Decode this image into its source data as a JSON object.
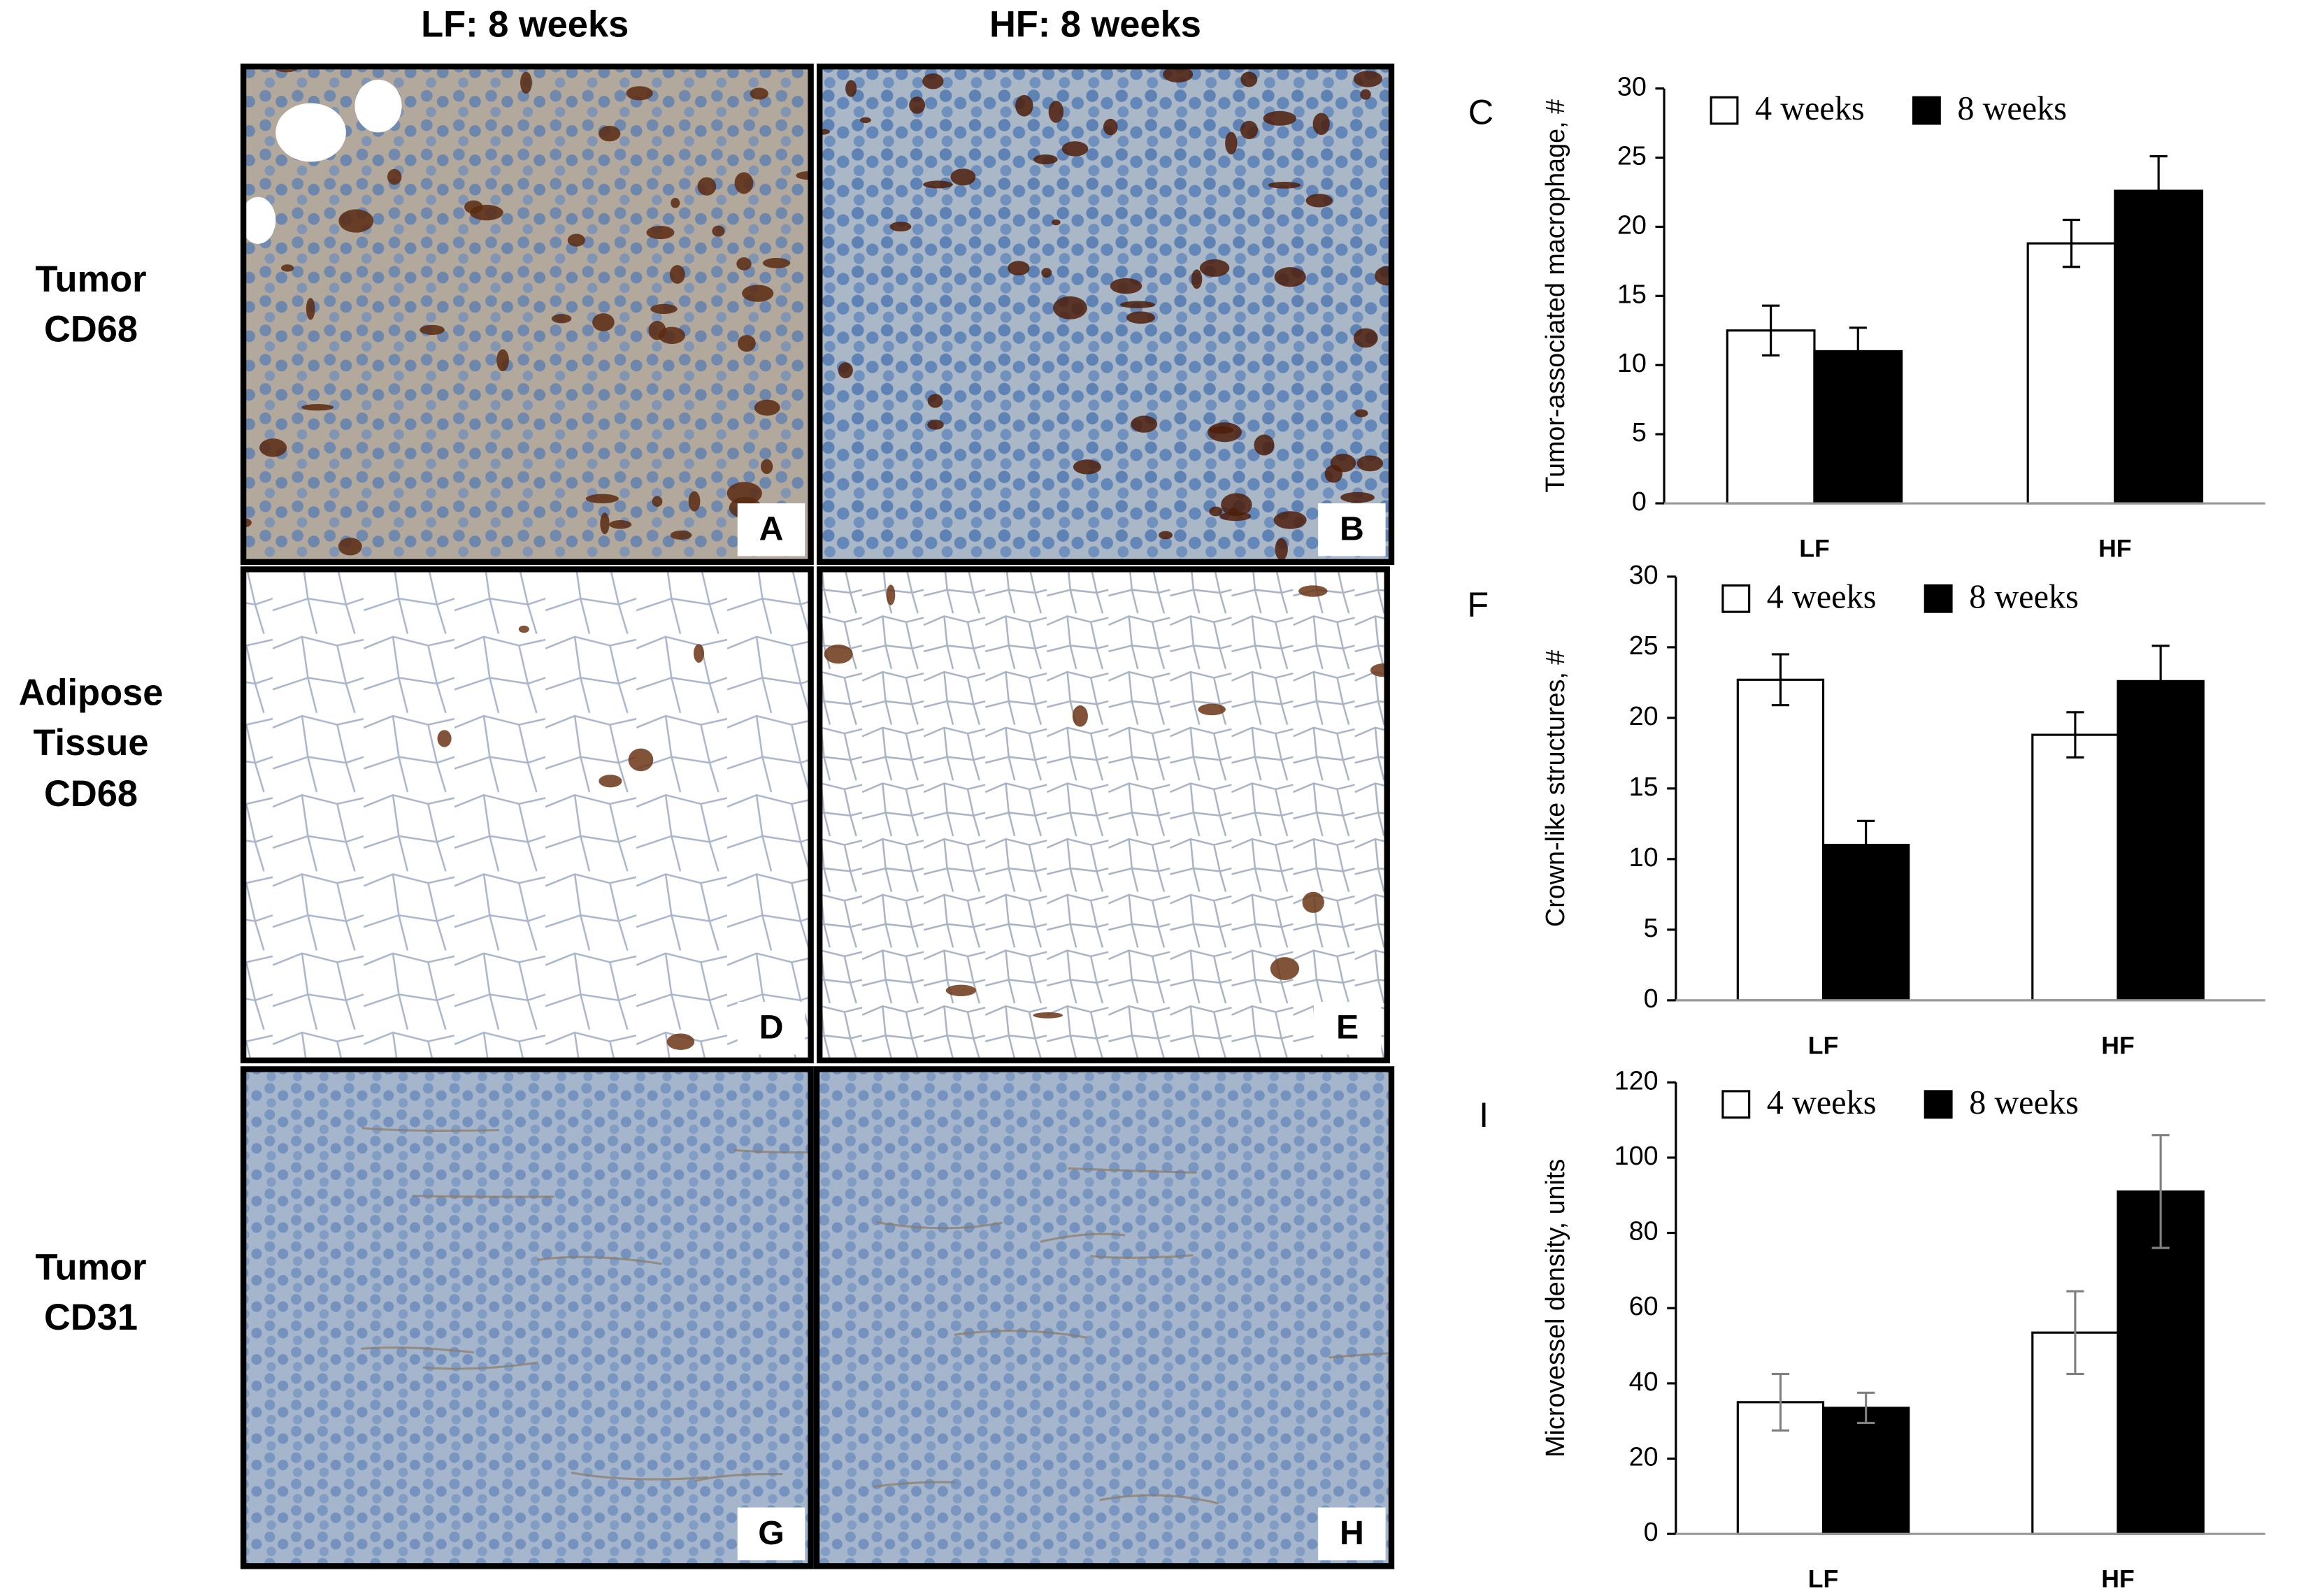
{
  "figure": {
    "columns": [
      "LF: 8 weeks",
      "HF: 8 weeks"
    ],
    "rows": [
      [
        "Tumor",
        "CD68"
      ],
      [
        "Adipose",
        "Tissue",
        "CD68"
      ],
      [
        "Tumor",
        "CD31"
      ]
    ],
    "panels": [
      "A",
      "B",
      "D",
      "E",
      "G",
      "H"
    ]
  },
  "chart_data": [
    {
      "type": "bar",
      "panel_label": "C",
      "ylabel": "Tumor-associated macrophage, #",
      "categories": [
        "LF",
        "HF"
      ],
      "series": [
        {
          "name": "4 weeks",
          "color": "#ffffff",
          "values": [
            12.5,
            18.8
          ],
          "errors": [
            1.8,
            1.7
          ]
        },
        {
          "name": "8 weeks",
          "color": "#000000",
          "values": [
            11,
            22.6
          ],
          "errors": [
            1.7,
            2.5
          ]
        }
      ],
      "error_color": "#000000",
      "ylim": [
        0,
        30
      ],
      "yticks": [
        0,
        5,
        10,
        15,
        20,
        25,
        30
      ],
      "grid": false,
      "legend": "upper left"
    },
    {
      "type": "bar",
      "panel_label": "F",
      "ylabel": "Crown-like structures, #",
      "categories": [
        "LF",
        "HF"
      ],
      "series": [
        {
          "name": "4 weeks",
          "color": "#ffffff",
          "values": [
            22.7,
            18.8
          ],
          "errors": [
            1.8,
            1.6
          ]
        },
        {
          "name": "8 weeks",
          "color": "#000000",
          "values": [
            11,
            22.6
          ],
          "errors": [
            1.7,
            2.5
          ]
        }
      ],
      "error_color": "#000000",
      "ylim": [
        0,
        30
      ],
      "yticks": [
        0,
        5,
        10,
        15,
        20,
        25,
        30
      ],
      "grid": false,
      "legend": "upper left"
    },
    {
      "type": "bar",
      "panel_label": "I",
      "ylabel": "Microvessel density, units",
      "categories": [
        "LF",
        "HF"
      ],
      "series": [
        {
          "name": "4 weeks",
          "color": "#ffffff",
          "values": [
            35,
            53.5
          ],
          "errors": [
            7.5,
            11
          ]
        },
        {
          "name": "8 weeks",
          "color": "#000000",
          "values": [
            33.5,
            91
          ],
          "errors": [
            4,
            15
          ]
        }
      ],
      "error_color": "#808080",
      "ylim": [
        0,
        120
      ],
      "yticks": [
        0,
        20,
        40,
        60,
        80,
        100,
        120
      ],
      "grid": false,
      "legend": "upper left"
    }
  ]
}
